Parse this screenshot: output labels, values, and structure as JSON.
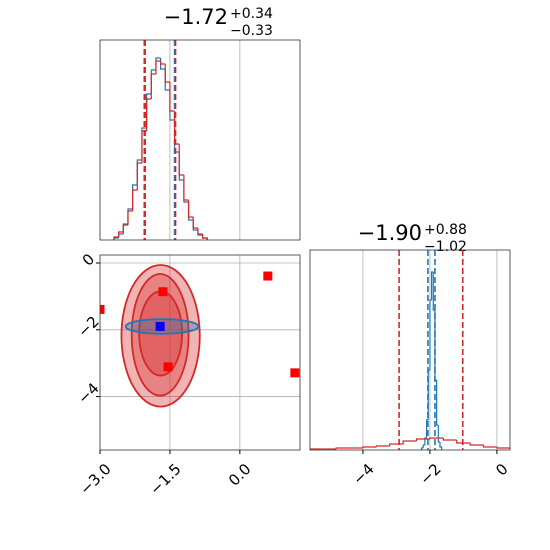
{
  "chart_data": [
    {
      "type": "histogram",
      "title": "−1.72",
      "title_upper": "+0.34",
      "title_lower": "−0.33",
      "xlim": [
        -3.0,
        1.29
      ],
      "ylim": [
        0,
        200
      ],
      "grid": true,
      "series": [
        {
          "color": "#1f77b4",
          "bins": [
            -2.7,
            -2.6,
            -2.5,
            -2.4,
            -2.3,
            -2.2,
            -2.1,
            -2.0,
            -1.9,
            -1.8,
            -1.7,
            -1.6,
            -1.5,
            -1.4,
            -1.3,
            -1.2,
            -1.1,
            -1.0,
            -0.9,
            -0.8,
            -0.7
          ],
          "values": [
            2,
            6,
            16,
            31,
            55,
            80,
            112,
            146,
            170,
            182,
            171,
            150,
            120,
            88,
            60,
            38,
            20,
            10,
            5,
            2
          ],
          "quantiles": [
            -2.03,
            -1.4
          ]
        },
        {
          "color": "#d62728",
          "bins": [
            -2.7,
            -2.6,
            -2.5,
            -2.4,
            -2.3,
            -2.2,
            -2.1,
            -2.0,
            -1.9,
            -1.8,
            -1.7,
            -1.6,
            -1.5,
            -1.4,
            -1.3,
            -1.2,
            -1.1,
            -1.0,
            -0.9,
            -0.8,
            -0.7
          ],
          "values": [
            3,
            8,
            15,
            29,
            50,
            77,
            109,
            141,
            166,
            179,
            176,
            158,
            129,
            96,
            65,
            40,
            23,
            12,
            6,
            2
          ],
          "quantiles": [
            -2.05,
            -1.38
          ]
        }
      ]
    },
    {
      "type": "contour",
      "xlim": [
        -3.0,
        1.29
      ],
      "ylim": [
        -5.6,
        0.24
      ],
      "grid": true,
      "xticks": [
        {
          "value": -3.0,
          "label": "−3.0"
        },
        {
          "value": -1.5,
          "label": "−1.5"
        },
        {
          "value": 0.0,
          "label": "0.0"
        }
      ],
      "yticks": [
        0,
        {
          "value": -2,
          "label": "−2"
        },
        {
          "value": -4,
          "label": "−4"
        }
      ],
      "contours": [
        {
          "color": "#d62728",
          "cx": -1.7,
          "cy": -2.18,
          "rx": 0.84,
          "ry": 2.12
        },
        {
          "color": "#d62728",
          "cx": -1.71,
          "cy": -2.15,
          "rx": 0.61,
          "ry": 1.82
        },
        {
          "color": "#d62728",
          "cx": -1.7,
          "cy": -2.11,
          "rx": 0.46,
          "ry": 1.26
        },
        {
          "color": "#1f77b4",
          "cx": -1.67,
          "cy": -1.9,
          "rx": 0.78,
          "ry": 0.22
        }
      ],
      "points": [
        {
          "color": "#ff0000",
          "x": [
            -1.65,
            0.6,
            1.18,
            -1.54,
            -3.0
          ],
          "y": [
            -0.86,
            -0.39,
            -3.29,
            -3.11,
            -1.39
          ]
        },
        {
          "color": "#0000ff",
          "x": [
            -1.71
          ],
          "y": [
            -1.9
          ]
        }
      ]
    },
    {
      "type": "histogram",
      "title": "−1.90",
      "title_upper": "+0.88",
      "title_lower": "−1.02",
      "xlim": [
        -5.58,
        0.39
      ],
      "ylim": [
        0,
        200
      ],
      "grid": true,
      "xticks": [
        {
          "value": -4,
          "label": "−4"
        },
        {
          "value": -2,
          "label": "−2"
        },
        0
      ],
      "series": [
        {
          "color": "#1f77b4",
          "bins": [
            -2.25,
            -2.2,
            -2.15,
            -2.1,
            -2.05,
            -2.0,
            -1.95,
            -1.9,
            -1.85,
            -1.8,
            -1.75,
            -1.7,
            -1.65
          ],
          "values": [
            2,
            5,
            12,
            30,
            80,
            150,
            178,
            140,
            70,
            25,
            8,
            3
          ],
          "quantiles": [
            -2.06,
            -1.85
          ]
        },
        {
          "color": "#d62728",
          "bins": [
            -5.6,
            -5.2,
            -4.8,
            -4.4,
            -4.0,
            -3.6,
            -3.2,
            -2.8,
            -2.4,
            -2.0,
            -1.6,
            -1.2,
            -0.8,
            -0.4,
            0.0,
            0.4
          ],
          "values": [
            1,
            1,
            2,
            2,
            3,
            4,
            6,
            9,
            11,
            12,
            10,
            7,
            5,
            3,
            2
          ],
          "quantiles": [
            -2.92,
            -1.02
          ]
        }
      ]
    }
  ]
}
